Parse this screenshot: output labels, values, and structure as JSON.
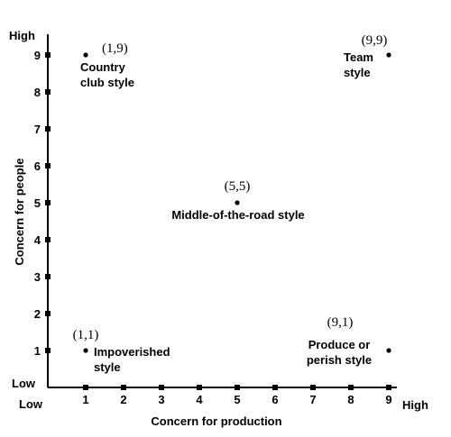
{
  "chart_data": {
    "type": "scatter",
    "title": "",
    "xlabel": "Concern for production",
    "ylabel": "Concern for people",
    "xlim": [
      0,
      9
    ],
    "ylim": [
      0,
      9
    ],
    "x_ticks": [
      "1",
      "2",
      "3",
      "4",
      "5",
      "6",
      "7",
      "8",
      "9"
    ],
    "y_ticks": [
      "1",
      "2",
      "3",
      "4",
      "5",
      "6",
      "7",
      "8",
      "9"
    ],
    "x_low_label": "Low",
    "x_high_label": "High",
    "y_low_label": "Low",
    "y_high_label": "High",
    "grid": false,
    "legend": "none",
    "points": [
      {
        "x": 1,
        "y": 9,
        "coord_label": "(1,9)",
        "style_lines": [
          "Country",
          "club style"
        ]
      },
      {
        "x": 9,
        "y": 9,
        "coord_label": "(9,9)",
        "style_lines": [
          "Team",
          "style"
        ]
      },
      {
        "x": 5,
        "y": 5,
        "coord_label": "(5,5)",
        "style_lines": [
          "Middle-of-the-road style"
        ]
      },
      {
        "x": 1,
        "y": 1,
        "coord_label": "(1,1)",
        "style_lines": [
          "Impoverished",
          "style"
        ]
      },
      {
        "x": 9,
        "y": 1,
        "coord_label": "(9,1)",
        "style_lines": [
          "Produce or",
          "perish style"
        ]
      }
    ]
  }
}
